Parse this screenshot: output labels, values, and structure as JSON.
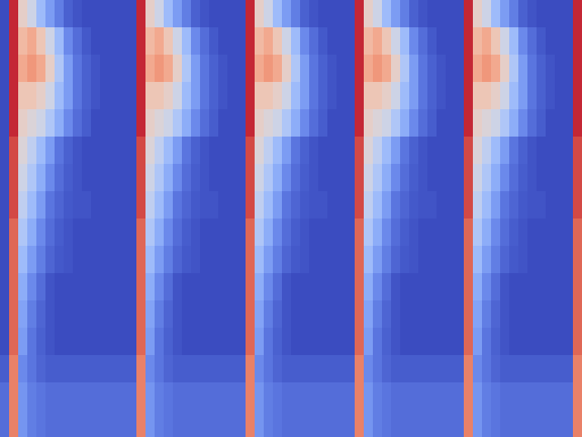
{
  "chart_data": {
    "type": "heatmap",
    "tick_labels": false,
    "zlim": [
      0,
      1
    ],
    "cells": [
      [
        0,
        0.95,
        0.55,
        0.45,
        0.3,
        0.2,
        0.12,
        0.05,
        0.02,
        0,
        0,
        0,
        0,
        0,
        0,
        0.95,
        0.55,
        0.45,
        0.3,
        0.2,
        0.12,
        0.05,
        0.02,
        0,
        0,
        0,
        0,
        0.95,
        0.55,
        0.45,
        0.3,
        0.2,
        0.12,
        0.05,
        0.02,
        0,
        0,
        0,
        0,
        0.95,
        0.55,
        0.45,
        0.3,
        0.2,
        0.12,
        0.05,
        0.02,
        0,
        0,
        0,
        0,
        0.95,
        0.55,
        0.45,
        0.3,
        0.2,
        0.12,
        0.05,
        0.02,
        0,
        0,
        0,
        0,
        0.95
      ],
      [
        0,
        0.95,
        0.65,
        0.7,
        0.6,
        0.45,
        0.3,
        0.15,
        0.08,
        0.03,
        0,
        0,
        0,
        0,
        0,
        0.95,
        0.65,
        0.7,
        0.6,
        0.45,
        0.3,
        0.15,
        0.08,
        0.03,
        0,
        0,
        0,
        0.95,
        0.65,
        0.7,
        0.6,
        0.45,
        0.3,
        0.15,
        0.08,
        0.03,
        0,
        0,
        0,
        0.95,
        0.65,
        0.7,
        0.6,
        0.45,
        0.3,
        0.15,
        0.08,
        0.03,
        0,
        0,
        0,
        0.95,
        0.65,
        0.7,
        0.6,
        0.45,
        0.3,
        0.15,
        0.08,
        0.03,
        0,
        0,
        0,
        0.95
      ],
      [
        0,
        0.95,
        0.7,
        0.75,
        0.7,
        0.55,
        0.35,
        0.2,
        0.1,
        0.05,
        0.02,
        0,
        0,
        0,
        0,
        0.95,
        0.7,
        0.75,
        0.7,
        0.55,
        0.35,
        0.2,
        0.1,
        0.05,
        0.02,
        0,
        0,
        0.95,
        0.7,
        0.75,
        0.7,
        0.55,
        0.35,
        0.2,
        0.1,
        0.05,
        0.02,
        0,
        0,
        0.95,
        0.7,
        0.75,
        0.7,
        0.55,
        0.35,
        0.2,
        0.1,
        0.05,
        0.02,
        0,
        0,
        0.95,
        0.7,
        0.75,
        0.7,
        0.55,
        0.35,
        0.2,
        0.1,
        0.05,
        0.02,
        0,
        0,
        0.95
      ],
      [
        0,
        0.95,
        0.6,
        0.6,
        0.55,
        0.45,
        0.3,
        0.2,
        0.1,
        0.05,
        0.02,
        0,
        0,
        0,
        0,
        0.95,
        0.6,
        0.6,
        0.55,
        0.45,
        0.3,
        0.2,
        0.1,
        0.05,
        0.02,
        0,
        0,
        0.95,
        0.6,
        0.6,
        0.55,
        0.45,
        0.3,
        0.2,
        0.1,
        0.05,
        0.02,
        0,
        0,
        0.95,
        0.6,
        0.6,
        0.55,
        0.45,
        0.3,
        0.2,
        0.1,
        0.05,
        0.02,
        0,
        0,
        0.95,
        0.6,
        0.6,
        0.55,
        0.45,
        0.3,
        0.2,
        0.1,
        0.05,
        0.02,
        0,
        0,
        0.95
      ],
      [
        0,
        0.95,
        0.55,
        0.5,
        0.45,
        0.35,
        0.25,
        0.15,
        0.08,
        0.04,
        0,
        0,
        0,
        0,
        0,
        0.95,
        0.55,
        0.5,
        0.45,
        0.35,
        0.25,
        0.15,
        0.08,
        0.04,
        0,
        0,
        0,
        0.95,
        0.55,
        0.5,
        0.45,
        0.35,
        0.25,
        0.15,
        0.08,
        0.04,
        0,
        0,
        0,
        0.95,
        0.55,
        0.5,
        0.45,
        0.35,
        0.25,
        0.15,
        0.08,
        0.04,
        0,
        0,
        0,
        0.95,
        0.55,
        0.5,
        0.45,
        0.35,
        0.25,
        0.15,
        0.08,
        0.04,
        0,
        0,
        0,
        0.95
      ],
      [
        0,
        0.9,
        0.5,
        0.4,
        0.3,
        0.2,
        0.1,
        0.05,
        0.02,
        0,
        0,
        0,
        0,
        0,
        0,
        0.9,
        0.5,
        0.4,
        0.3,
        0.2,
        0.1,
        0.05,
        0.02,
        0,
        0,
        0,
        0,
        0.9,
        0.5,
        0.4,
        0.3,
        0.2,
        0.1,
        0.05,
        0.02,
        0,
        0,
        0,
        0,
        0.9,
        0.5,
        0.4,
        0.3,
        0.2,
        0.1,
        0.05,
        0.02,
        0,
        0,
        0,
        0,
        0.9,
        0.5,
        0.4,
        0.3,
        0.2,
        0.1,
        0.05,
        0.02,
        0,
        0,
        0,
        0,
        0.9
      ],
      [
        0,
        0.9,
        0.45,
        0.35,
        0.25,
        0.15,
        0.08,
        0.04,
        0.02,
        0,
        0,
        0,
        0,
        0,
        0,
        0.9,
        0.45,
        0.35,
        0.25,
        0.15,
        0.08,
        0.04,
        0.02,
        0,
        0,
        0,
        0,
        0.9,
        0.45,
        0.35,
        0.25,
        0.15,
        0.08,
        0.04,
        0.02,
        0,
        0,
        0,
        0,
        0.9,
        0.45,
        0.35,
        0.25,
        0.15,
        0.08,
        0.04,
        0.02,
        0,
        0,
        0,
        0,
        0.9,
        0.45,
        0.35,
        0.25,
        0.15,
        0.08,
        0.04,
        0.02,
        0,
        0,
        0,
        0,
        0.9
      ],
      [
        0,
        0.9,
        0.4,
        0.3,
        0.2,
        0.1,
        0.06,
        0.03,
        0.02,
        0.02,
        0,
        0,
        0,
        0,
        0,
        0.9,
        0.4,
        0.3,
        0.2,
        0.1,
        0.06,
        0.03,
        0.02,
        0.02,
        0,
        0,
        0,
        0.9,
        0.4,
        0.3,
        0.2,
        0.1,
        0.06,
        0.03,
        0.02,
        0.02,
        0,
        0,
        0,
        0.9,
        0.4,
        0.3,
        0.2,
        0.1,
        0.06,
        0.03,
        0.02,
        0.02,
        0,
        0,
        0,
        0.9,
        0.4,
        0.3,
        0.2,
        0.1,
        0.06,
        0.03,
        0.02,
        0.02,
        0,
        0,
        0,
        0.9
      ],
      [
        0,
        0.85,
        0.35,
        0.25,
        0.15,
        0.08,
        0.04,
        0.02,
        0,
        0,
        0,
        0,
        0,
        0,
        0,
        0.85,
        0.35,
        0.25,
        0.15,
        0.08,
        0.04,
        0.02,
        0,
        0,
        0,
        0,
        0,
        0.85,
        0.35,
        0.25,
        0.15,
        0.08,
        0.04,
        0.02,
        0,
        0,
        0,
        0,
        0,
        0.85,
        0.35,
        0.25,
        0.15,
        0.08,
        0.04,
        0.02,
        0,
        0,
        0,
        0,
        0,
        0.85,
        0.35,
        0.25,
        0.15,
        0.08,
        0.04,
        0.02,
        0,
        0,
        0,
        0,
        0,
        0.85
      ],
      [
        0,
        0.85,
        0.3,
        0.2,
        0.12,
        0.06,
        0.03,
        0.02,
        0,
        0,
        0,
        0,
        0,
        0,
        0,
        0.85,
        0.3,
        0.2,
        0.12,
        0.06,
        0.03,
        0.02,
        0,
        0,
        0,
        0,
        0,
        0.85,
        0.3,
        0.2,
        0.12,
        0.06,
        0.03,
        0.02,
        0,
        0,
        0,
        0,
        0,
        0.85,
        0.3,
        0.2,
        0.12,
        0.06,
        0.03,
        0.02,
        0,
        0,
        0,
        0,
        0,
        0.85,
        0.3,
        0.2,
        0.12,
        0.06,
        0.03,
        0.02,
        0,
        0,
        0,
        0,
        0,
        0.85
      ],
      [
        0,
        0.85,
        0.25,
        0.15,
        0.08,
        0.02,
        0,
        0,
        0,
        0,
        0,
        0,
        0,
        0,
        0,
        0.85,
        0.25,
        0.15,
        0.08,
        0.02,
        0,
        0,
        0,
        0,
        0,
        0,
        0,
        0.85,
        0.25,
        0.15,
        0.08,
        0.02,
        0,
        0,
        0,
        0,
        0,
        0,
        0,
        0.85,
        0.25,
        0.15,
        0.08,
        0.02,
        0,
        0,
        0,
        0,
        0,
        0,
        0,
        0.85,
        0.25,
        0.15,
        0.08,
        0.02,
        0,
        0,
        0,
        0,
        0,
        0,
        0,
        0.85
      ],
      [
        0,
        0.85,
        0.22,
        0.12,
        0.06,
        0.02,
        0,
        0,
        0,
        0,
        0,
        0,
        0,
        0,
        0,
        0.85,
        0.22,
        0.12,
        0.06,
        0.02,
        0,
        0,
        0,
        0,
        0,
        0,
        0,
        0.85,
        0.22,
        0.12,
        0.06,
        0.02,
        0,
        0,
        0,
        0,
        0,
        0,
        0,
        0.85,
        0.22,
        0.12,
        0.06,
        0.02,
        0,
        0,
        0,
        0,
        0,
        0,
        0,
        0.85,
        0.22,
        0.12,
        0.06,
        0.02,
        0,
        0,
        0,
        0,
        0,
        0,
        0,
        0.85
      ],
      [
        0,
        0.85,
        0.2,
        0.1,
        0.05,
        0.02,
        0,
        0,
        0,
        0,
        0,
        0,
        0,
        0,
        0,
        0.85,
        0.2,
        0.1,
        0.05,
        0.02,
        0,
        0,
        0,
        0,
        0,
        0,
        0,
        0.85,
        0.2,
        0.1,
        0.05,
        0.02,
        0,
        0,
        0,
        0,
        0,
        0,
        0,
        0.85,
        0.2,
        0.1,
        0.05,
        0.02,
        0,
        0,
        0,
        0,
        0,
        0,
        0,
        0.85,
        0.2,
        0.1,
        0.05,
        0.02,
        0,
        0,
        0,
        0,
        0,
        0,
        0,
        0.85
      ],
      [
        0.04,
        0.8,
        0.15,
        0.1,
        0.06,
        0.04,
        0.04,
        0.04,
        0.04,
        0.04,
        0.04,
        0.04,
        0.04,
        0.04,
        0.04,
        0.8,
        0.15,
        0.1,
        0.06,
        0.04,
        0.04,
        0.04,
        0.04,
        0.04,
        0.04,
        0.04,
        0.04,
        0.8,
        0.15,
        0.1,
        0.06,
        0.04,
        0.04,
        0.04,
        0.04,
        0.04,
        0.04,
        0.04,
        0.04,
        0.8,
        0.15,
        0.1,
        0.06,
        0.04,
        0.04,
        0.04,
        0.04,
        0.04,
        0.04,
        0.04,
        0.04,
        0.8,
        0.15,
        0.1,
        0.06,
        0.04,
        0.04,
        0.04,
        0.04,
        0.04,
        0.04,
        0.04,
        0.04,
        0.8
      ],
      [
        0.08,
        0.8,
        0.18,
        0.12,
        0.1,
        0.08,
        0.08,
        0.08,
        0.08,
        0.08,
        0.08,
        0.08,
        0.08,
        0.08,
        0.08,
        0.8,
        0.18,
        0.12,
        0.1,
        0.08,
        0.08,
        0.08,
        0.08,
        0.08,
        0.08,
        0.08,
        0.08,
        0.8,
        0.18,
        0.12,
        0.1,
        0.08,
        0.08,
        0.08,
        0.08,
        0.08,
        0.08,
        0.08,
        0.08,
        0.8,
        0.18,
        0.12,
        0.1,
        0.08,
        0.08,
        0.08,
        0.08,
        0.08,
        0.08,
        0.08,
        0.08,
        0.8,
        0.18,
        0.12,
        0.1,
        0.08,
        0.08,
        0.08,
        0.08,
        0.08,
        0.08,
        0.08,
        0.08,
        0.8
      ],
      [
        0.08,
        0.8,
        0.18,
        0.12,
        0.1,
        0.08,
        0.08,
        0.08,
        0.08,
        0.08,
        0.08,
        0.08,
        0.08,
        0.08,
        0.08,
        0.8,
        0.18,
        0.12,
        0.1,
        0.08,
        0.08,
        0.08,
        0.08,
        0.08,
        0.08,
        0.08,
        0.08,
        0.8,
        0.18,
        0.12,
        0.1,
        0.08,
        0.08,
        0.08,
        0.08,
        0.08,
        0.08,
        0.08,
        0.08,
        0.8,
        0.18,
        0.12,
        0.1,
        0.08,
        0.08,
        0.08,
        0.08,
        0.08,
        0.08,
        0.08,
        0.08,
        0.8,
        0.18,
        0.12,
        0.1,
        0.08,
        0.08,
        0.08,
        0.08,
        0.08,
        0.08,
        0.08,
        0.08,
        0.8
      ]
    ]
  }
}
